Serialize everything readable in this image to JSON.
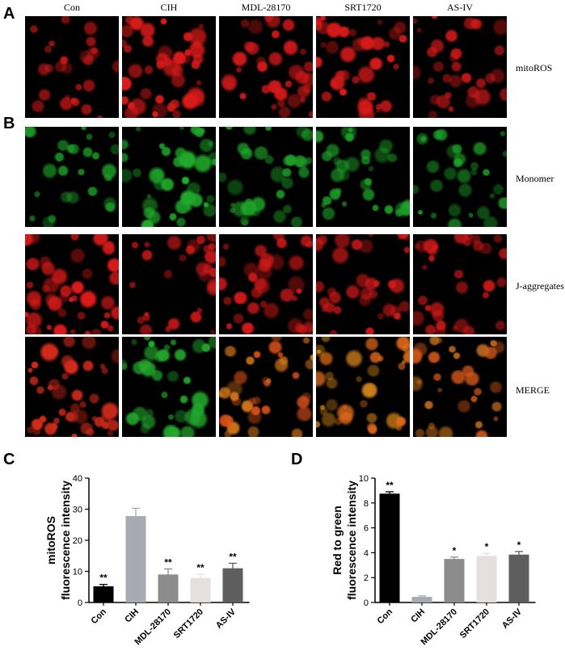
{
  "figure": {
    "panel_letters": [
      "A",
      "B",
      "C",
      "D"
    ],
    "columns": [
      "Con",
      "CIH",
      "MDL-28170",
      "SRT1720",
      "AS-IV"
    ],
    "rows": [
      "mitoROS",
      "Monomer",
      "J-aggregates",
      "MERGE"
    ],
    "density": {
      "mitoROS": [
        0.35,
        0.85,
        0.6,
        0.7,
        0.5
      ],
      "Monomer": [
        0.35,
        0.75,
        0.55,
        0.5,
        0.45
      ],
      "J-aggregates": [
        0.8,
        0.45,
        0.6,
        0.55,
        0.5
      ],
      "MERGE": [
        0.8,
        0.65,
        0.6,
        0.6,
        0.5
      ]
    },
    "row_colors": {
      "mitoROS": [
        "#d81a1a"
      ],
      "Monomer": [
        "#1fa82a"
      ],
      "J-aggregates": [
        "#d81a1a"
      ],
      "MERGE": [
        "#d8781a",
        "#e0531a",
        "#c8901e"
      ]
    },
    "merge_tint_by_column": [
      [
        "#d02a1a"
      ],
      [
        "#22a82c"
      ],
      [
        "#d8781a",
        "#e0531a"
      ],
      [
        "#d8861a",
        "#e06a1a"
      ],
      [
        "#c8701e",
        "#d85a1a"
      ]
    ]
  },
  "chart_data": [
    {
      "type": "bar",
      "panel": "C",
      "categories": [
        "Con",
        "CIH",
        "MDL-28170",
        "SRT1720",
        "AS-IV"
      ],
      "values": [
        5.2,
        27.8,
        9.0,
        7.9,
        11.0
      ],
      "errors": [
        0.6,
        2.5,
        1.8,
        1.2,
        1.6
      ],
      "significance": [
        "**",
        "",
        "**",
        "**",
        "**"
      ],
      "colors": [
        "#000000",
        "#a9a9b3",
        "#8c8c8c",
        "#e6dfe0",
        "#5e5e5e"
      ],
      "ylabel_lines": [
        "mitoROS",
        "fluorescence intensity"
      ],
      "ylim": [
        0,
        40
      ],
      "yticks": [
        0,
        10,
        20,
        30,
        40
      ]
    },
    {
      "type": "bar",
      "panel": "D",
      "categories": [
        "Con",
        "CIH",
        "MDL-28170",
        "SRT1720",
        "AS-IV"
      ],
      "values": [
        8.75,
        0.45,
        3.5,
        3.75,
        3.85
      ],
      "errors": [
        0.15,
        0.08,
        0.15,
        0.2,
        0.25
      ],
      "significance": [
        "**",
        "",
        "*",
        "*",
        "*"
      ],
      "colors": [
        "#000000",
        "#a9a9b3",
        "#8c8c8c",
        "#e6dfe0",
        "#5e5e5e"
      ],
      "ylabel_lines": [
        "Red to green",
        "fluorescence intensity"
      ],
      "ylim": [
        0,
        10
      ],
      "yticks": [
        0,
        2,
        4,
        6,
        8,
        10
      ]
    }
  ]
}
